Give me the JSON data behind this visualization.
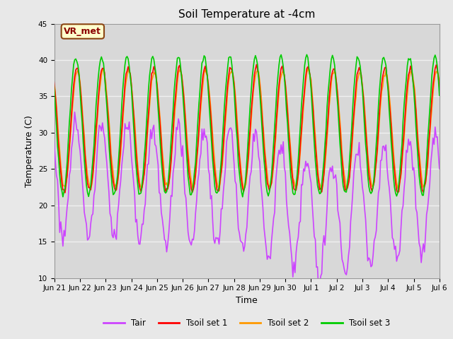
{
  "title": "Soil Temperature at -4cm",
  "xlabel": "Time",
  "ylabel": "Temperature (C)",
  "ylim": [
    10,
    45
  ],
  "xlim": [
    24,
    384
  ],
  "background_color": "#e8e8e8",
  "plot_bg_color": "#d8d8d8",
  "grid_color": "#f0f0f0",
  "annotation_text": "VR_met",
  "annotation_bg": "#ffffcc",
  "annotation_border": "#8b4513",
  "annotation_text_color": "#8b0000",
  "tick_labels": [
    "Jun 21",
    "Jun 22",
    "Jun 23",
    "Jun 24",
    "Jun 25",
    "Jun 26",
    "Jun 27",
    "Jun 28",
    "Jun 29",
    "Jun 30",
    "Jul 1",
    "Jul 2",
    "Jul 3",
    "Jul 4",
    "Jul 5",
    "Jul 6"
  ],
  "tick_positions": [
    24,
    48,
    72,
    96,
    120,
    144,
    168,
    192,
    216,
    240,
    264,
    288,
    312,
    336,
    360,
    384
  ],
  "series_colors": [
    "#cc44ff",
    "#ff0000",
    "#ff9900",
    "#00cc00"
  ],
  "series_labels": [
    "Tair",
    "Tsoil set 1",
    "Tsoil set 2",
    "Tsoil set 3"
  ],
  "line_width": 1.2
}
